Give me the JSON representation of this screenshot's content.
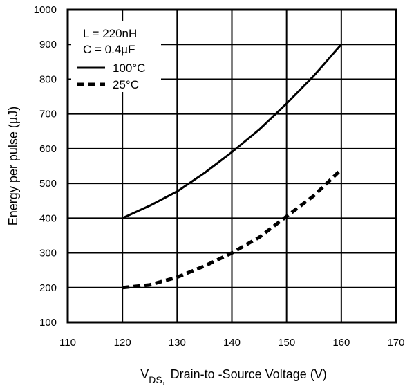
{
  "chart_data": {
    "type": "line",
    "xlabel": "Drain-to -Source Voltage  (V)",
    "xlabel_symbol": "V",
    "xlabel_subscript": "DS,",
    "ylabel": "Energy per pulse (µJ)",
    "xlim": [
      110,
      170
    ],
    "ylim": [
      100,
      1000
    ],
    "x_ticks": [
      110,
      120,
      130,
      140,
      150,
      160,
      170
    ],
    "x_tick_labels": [
      "110",
      "120",
      "130",
      "140",
      "150",
      "160",
      "170"
    ],
    "y_ticks": [
      100,
      200,
      300,
      400,
      500,
      600,
      700,
      800,
      900,
      1000
    ],
    "y_tick_labels": [
      "100",
      "200",
      "300",
      "400",
      "500",
      "600",
      "700",
      "800",
      "900",
      "1000"
    ],
    "grid": true,
    "legend_position": "top-left",
    "annotations": [
      "L = 220nH",
      "C = 0.4µF"
    ],
    "series": [
      {
        "name": "100°C",
        "style": "solid",
        "x": [
          120,
          125,
          130,
          135,
          140,
          145,
          150,
          155,
          160
        ],
        "y": [
          400,
          436,
          477,
          530,
          590,
          655,
          730,
          810,
          900
        ]
      },
      {
        "name": "25°C",
        "style": "dashed",
        "x": [
          120,
          125,
          130,
          135,
          140,
          145,
          150,
          155,
          160
        ],
        "y": [
          200,
          208,
          230,
          262,
          300,
          345,
          405,
          465,
          540
        ]
      }
    ]
  }
}
